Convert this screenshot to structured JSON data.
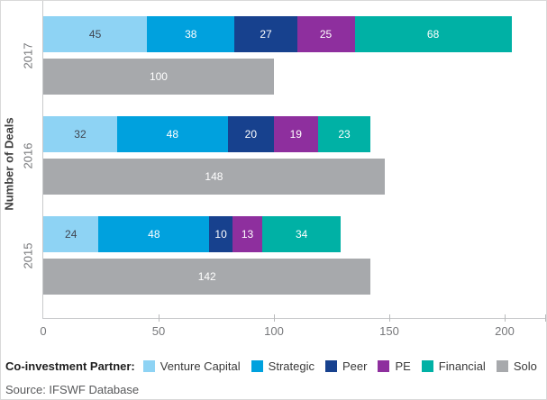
{
  "chart_data": {
    "type": "bar",
    "orientation": "horizontal",
    "title": "",
    "xlabel": "",
    "ylabel": "Number of Deals",
    "categories": [
      "2017",
      "2016",
      "2015"
    ],
    "series": [
      {
        "name": "Venture Capital",
        "color": "#8ED3F4",
        "label_color": "#404550",
        "values": [
          45,
          32,
          24
        ]
      },
      {
        "name": "Strategic",
        "color": "#00A1DE",
        "label_color": "#FFFFFF",
        "values": [
          38,
          48,
          48
        ]
      },
      {
        "name": "Peer",
        "color": "#17418E",
        "label_color": "#FFFFFF",
        "values": [
          27,
          20,
          10
        ]
      },
      {
        "name": "PE",
        "color": "#8E2F9E",
        "label_color": "#FFFFFF",
        "values": [
          25,
          19,
          13
        ]
      },
      {
        "name": "Financial",
        "color": "#00B1A5",
        "label_color": "#FFFFFF",
        "values": [
          68,
          23,
          34
        ]
      },
      {
        "name": "Solo",
        "color": "#A7A9AC",
        "label_color": "#FFFFFF",
        "values": [
          100,
          148,
          142
        ],
        "solo_row": true
      }
    ],
    "stacked_totals": [
      203,
      142,
      129
    ],
    "x_ticks": [
      0,
      50,
      100,
      150,
      200
    ],
    "xlim": [
      0,
      218
    ],
    "grid": false,
    "legend_position": "bottom",
    "legend_title": "Co-investment Partner:"
  },
  "footer": {
    "source": "Source: IFSWF Database"
  },
  "style_colors": {
    "axis_line": "#C9CACC",
    "tick_text": "#77787B",
    "axis_title_text": "#3F3F3F",
    "legend_title_text": "#1F1F1F",
    "legend_text": "#3A3A3A",
    "source_text": "#58595B"
  }
}
